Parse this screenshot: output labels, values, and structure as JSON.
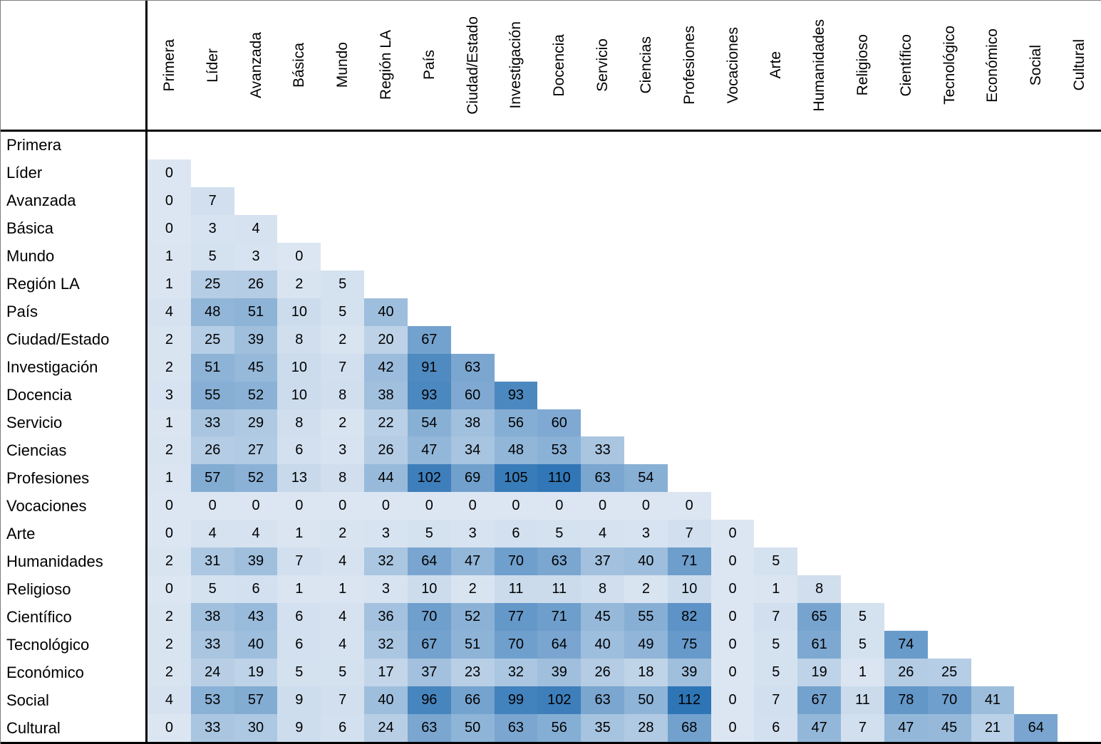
{
  "chart_data": {
    "type": "heatmap",
    "title": "",
    "xlabel": "",
    "ylabel": "",
    "legend": false,
    "grid": false,
    "layout": "strictly lower-triangular matrix; identical categories on rows and columns; column headers rotated 90 degrees",
    "categories": [
      "Primera",
      "Líder",
      "Avanzada",
      "Básica",
      "Mundo",
      "Región LA",
      "País",
      "Ciudad/Estado",
      "Investigación",
      "Docencia",
      "Servicio",
      "Ciencias",
      "Profesiones",
      "Vocaciones",
      "Arte",
      "Humanidades",
      "Religioso",
      "Científico",
      "Tecnológico",
      "Económico",
      "Social",
      "Cultural"
    ],
    "rows": [
      [],
      [
        0
      ],
      [
        0,
        7
      ],
      [
        0,
        3,
        4
      ],
      [
        1,
        5,
        3,
        0
      ],
      [
        1,
        25,
        26,
        2,
        5
      ],
      [
        4,
        48,
        51,
        10,
        5,
        40
      ],
      [
        2,
        25,
        39,
        8,
        2,
        20,
        67
      ],
      [
        2,
        51,
        45,
        10,
        7,
        42,
        91,
        63
      ],
      [
        3,
        55,
        52,
        10,
        8,
        38,
        93,
        60,
        93
      ],
      [
        1,
        33,
        29,
        8,
        2,
        22,
        54,
        38,
        56,
        60
      ],
      [
        2,
        26,
        27,
        6,
        3,
        26,
        47,
        34,
        48,
        53,
        33
      ],
      [
        1,
        57,
        52,
        13,
        8,
        44,
        102,
        69,
        105,
        110,
        63,
        54
      ],
      [
        0,
        0,
        0,
        0,
        0,
        0,
        0,
        0,
        0,
        0,
        0,
        0,
        0
      ],
      [
        0,
        4,
        4,
        1,
        2,
        3,
        5,
        3,
        6,
        5,
        4,
        3,
        7,
        0
      ],
      [
        2,
        31,
        39,
        7,
        4,
        32,
        64,
        47,
        70,
        63,
        37,
        40,
        71,
        0,
        5
      ],
      [
        0,
        5,
        6,
        1,
        1,
        3,
        10,
        2,
        11,
        11,
        8,
        2,
        10,
        0,
        1,
        8
      ],
      [
        2,
        38,
        43,
        6,
        4,
        36,
        70,
        52,
        77,
        71,
        45,
        55,
        82,
        0,
        7,
        65,
        5
      ],
      [
        2,
        33,
        40,
        6,
        4,
        32,
        67,
        51,
        70,
        64,
        40,
        49,
        75,
        0,
        5,
        61,
        5,
        74
      ],
      [
        2,
        24,
        19,
        5,
        5,
        17,
        37,
        23,
        32,
        39,
        26,
        18,
        39,
        0,
        5,
        19,
        1,
        26,
        25
      ],
      [
        4,
        53,
        57,
        9,
        7,
        40,
        96,
        66,
        99,
        102,
        63,
        50,
        112,
        0,
        7,
        67,
        11,
        78,
        70,
        41
      ],
      [
        0,
        33,
        30,
        9,
        6,
        24,
        63,
        50,
        63,
        56,
        35,
        28,
        68,
        0,
        6,
        47,
        7,
        47,
        45,
        21,
        64
      ]
    ],
    "color_scale": {
      "min_value": 0,
      "max_value": 112,
      "min_color": "#dce6f2",
      "max_color": "#2e75b6"
    },
    "border_color": "#000000",
    "outer_thin_border_color": "#7f7f7f"
  }
}
